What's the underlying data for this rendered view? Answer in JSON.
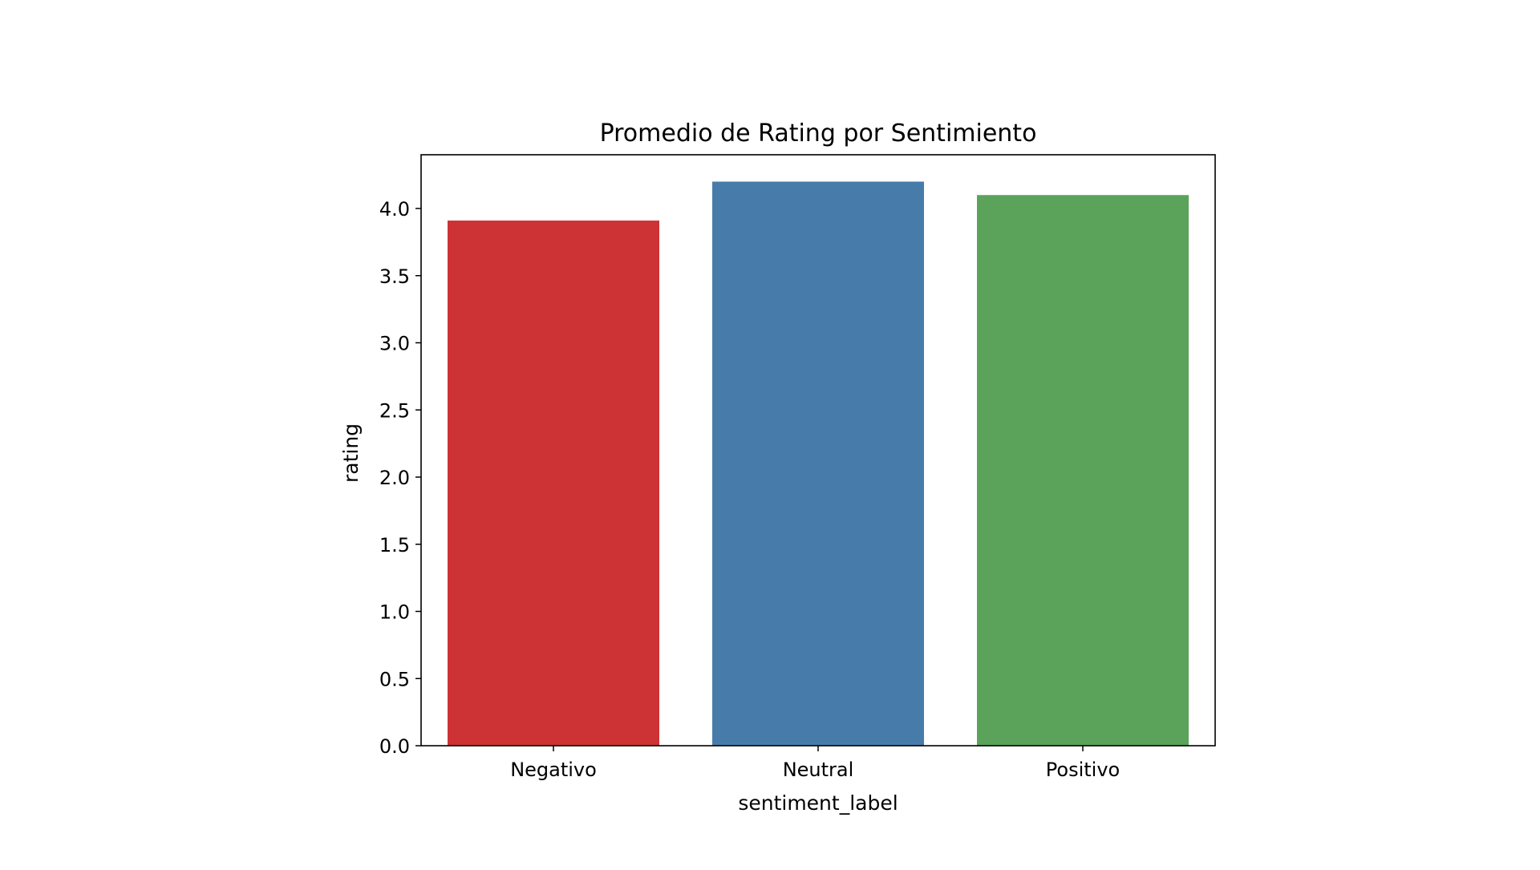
{
  "chart_data": {
    "type": "bar",
    "title": "Promedio de Rating por Sentimiento",
    "xlabel": "sentiment_label",
    "ylabel": "rating",
    "categories": [
      "Negativo",
      "Neutral",
      "Positivo"
    ],
    "values": [
      3.91,
      4.2,
      4.1
    ],
    "colors": [
      "#cd3235",
      "#477caa",
      "#5ba35a"
    ],
    "ylim": [
      0,
      4.4
    ],
    "yticks": [
      "0.0",
      "0.5",
      "1.0",
      "1.5",
      "2.0",
      "2.5",
      "3.0",
      "3.5",
      "4.0"
    ],
    "grid": false,
    "legend": "none"
  }
}
